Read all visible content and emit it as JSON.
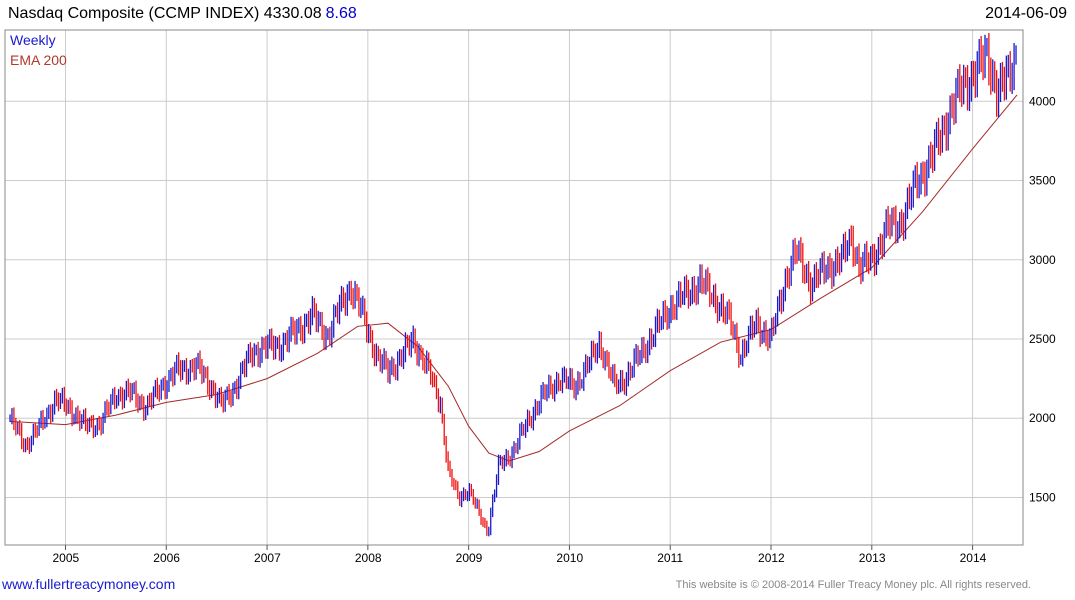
{
  "header": {
    "title": "Nasdaq Composite (CCMP INDEX) 4330.08",
    "change": "8.68",
    "date": "2014-06-09"
  },
  "legend": {
    "weekly": "Weekly",
    "ema": "EMA 200"
  },
  "footer": {
    "site": "www.fullertreacymoney.com",
    "notice": "This website is © 2008-2014 Fuller Treacy Money plc. All rights reserved."
  },
  "colors": {
    "up": "#1a1acc",
    "down": "#ee1111",
    "ema": "#a52a2a",
    "grid": "#cccccc"
  },
  "chart_data": {
    "type": "line",
    "title": "Nasdaq Composite (CCMP INDEX) 4330.08",
    "xlabel": "",
    "ylabel": "",
    "xlim": [
      2004.4,
      2014.5
    ],
    "ylim": [
      1200,
      4450
    ],
    "x_ticks": [
      "2005",
      "2006",
      "2007",
      "2008",
      "2009",
      "2010",
      "2011",
      "2012",
      "2013",
      "2014"
    ],
    "y_ticks": [
      1500,
      2000,
      2500,
      3000,
      3500,
      4000
    ],
    "grid": true,
    "legend_position": "top-left",
    "series": [
      {
        "name": "Weekly",
        "x": [
          2004.45,
          2004.6,
          2004.75,
          2004.9,
          2005.05,
          2005.2,
          2005.35,
          2005.5,
          2005.65,
          2005.8,
          2005.95,
          2006.1,
          2006.3,
          2006.45,
          2006.55,
          2006.7,
          2006.85,
          2007.0,
          2007.15,
          2007.3,
          2007.45,
          2007.6,
          2007.75,
          2007.83,
          2007.95,
          2008.1,
          2008.2,
          2008.35,
          2008.45,
          2008.6,
          2008.72,
          2008.8,
          2008.9,
          2009.0,
          2009.1,
          2009.19,
          2009.3,
          2009.45,
          2009.6,
          2009.75,
          2009.9,
          2010.05,
          2010.2,
          2010.3,
          2010.45,
          2010.55,
          2010.7,
          2010.85,
          2011.0,
          2011.15,
          2011.3,
          2011.45,
          2011.6,
          2011.7,
          2011.85,
          2012.0,
          2012.15,
          2012.25,
          2012.4,
          2012.55,
          2012.7,
          2012.8,
          2012.88,
          2013.0,
          2013.15,
          2013.3,
          2013.45,
          2013.6,
          2013.75,
          2013.9,
          2014.05,
          2014.15,
          2014.25,
          2014.35,
          2014.44
        ],
        "values": [
          2000,
          1830,
          1950,
          2120,
          2060,
          1950,
          1970,
          2150,
          2160,
          2070,
          2200,
          2300,
          2330,
          2200,
          2080,
          2220,
          2420,
          2450,
          2470,
          2560,
          2650,
          2520,
          2740,
          2830,
          2650,
          2370,
          2300,
          2400,
          2500,
          2300,
          2100,
          1650,
          1500,
          1550,
          1400,
          1290,
          1700,
          1800,
          2000,
          2150,
          2250,
          2200,
          2350,
          2480,
          2200,
          2250,
          2400,
          2550,
          2700,
          2780,
          2860,
          2750,
          2600,
          2400,
          2600,
          2500,
          2900,
          3050,
          2850,
          2950,
          3000,
          3150,
          2950,
          3000,
          3200,
          3250,
          3500,
          3650,
          3900,
          4100,
          4200,
          4300,
          4050,
          4150,
          4330
        ]
      },
      {
        "name": "EMA 200",
        "x": [
          2004.45,
          2005.0,
          2005.5,
          2006.0,
          2006.5,
          2007.0,
          2007.5,
          2007.9,
          2008.2,
          2008.5,
          2008.8,
          2009.0,
          2009.2,
          2009.4,
          2009.7,
          2010.0,
          2010.5,
          2011.0,
          2011.5,
          2012.0,
          2012.5,
          2013.0,
          2013.5,
          2014.0,
          2014.44
        ],
        "values": [
          1980,
          1960,
          2020,
          2100,
          2150,
          2250,
          2410,
          2580,
          2600,
          2450,
          2200,
          1950,
          1780,
          1730,
          1790,
          1920,
          2080,
          2300,
          2480,
          2560,
          2760,
          2950,
          3300,
          3700,
          4040
        ]
      }
    ]
  }
}
